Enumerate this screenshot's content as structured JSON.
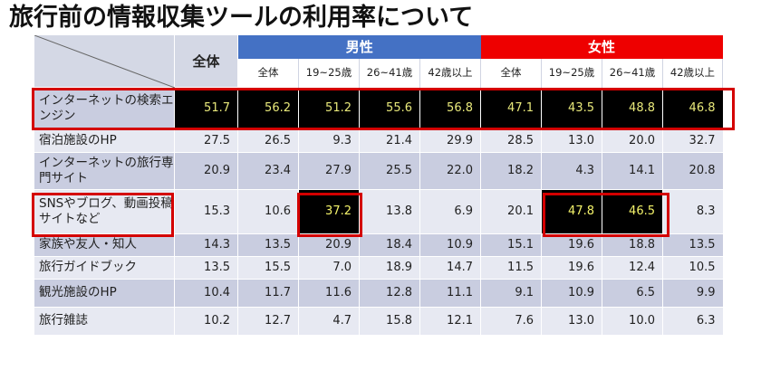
{
  "title": "旅行前の情報収集ツールの利用率について",
  "header": {
    "total": "全体",
    "male": "男性",
    "female": "女性",
    "sub": [
      "全体",
      "19~25歳",
      "26~41歳",
      "42歳以上",
      "全体",
      "19~25歳",
      "26~41歳",
      "42歳以上"
    ]
  },
  "rows": [
    {
      "label": "インターネットの検索エンジン",
      "values": [
        "51.7",
        "56.2",
        "51.2",
        "55.6",
        "56.8",
        "47.1",
        "43.5",
        "48.8",
        "46.8"
      ]
    },
    {
      "label": "宿泊施設のHP",
      "values": [
        "27.5",
        "26.5",
        "9.3",
        "21.4",
        "29.9",
        "28.5",
        "13.0",
        "20.0",
        "32.7"
      ]
    },
    {
      "label": "インターネットの旅行専門サイト",
      "values": [
        "20.9",
        "23.4",
        "27.9",
        "25.5",
        "22.0",
        "18.2",
        "4.3",
        "14.1",
        "20.8"
      ]
    },
    {
      "label": "SNSやブログ、動画投稿サイトなど",
      "values": [
        "15.3",
        "10.6",
        "37.2",
        "13.8",
        "6.9",
        "20.1",
        "47.8",
        "46.5",
        "8.3"
      ]
    },
    {
      "label": "家族や友人・知人",
      "values": [
        "14.3",
        "13.5",
        "20.9",
        "18.4",
        "10.9",
        "15.1",
        "19.6",
        "18.8",
        "13.5"
      ]
    },
    {
      "label": "旅行ガイドブック",
      "values": [
        "13.5",
        "15.5",
        "7.0",
        "18.9",
        "14.7",
        "11.5",
        "19.6",
        "12.4",
        "10.5"
      ]
    },
    {
      "label": "観光施設のHP",
      "values": [
        "10.4",
        "11.7",
        "11.6",
        "12.8",
        "11.1",
        "9.1",
        "10.9",
        "6.5",
        "9.9"
      ]
    },
    {
      "label": "旅行雑誌",
      "values": [
        "10.2",
        "12.7",
        "4.7",
        "15.8",
        "12.1",
        "7.6",
        "13.0",
        "10.0",
        "6.3"
      ]
    }
  ],
  "colors": {
    "male": "#4471c4",
    "female": "#ee0000",
    "highlight": "#000000",
    "highlight_text": "#f3f26a",
    "box": "#d40000"
  }
}
